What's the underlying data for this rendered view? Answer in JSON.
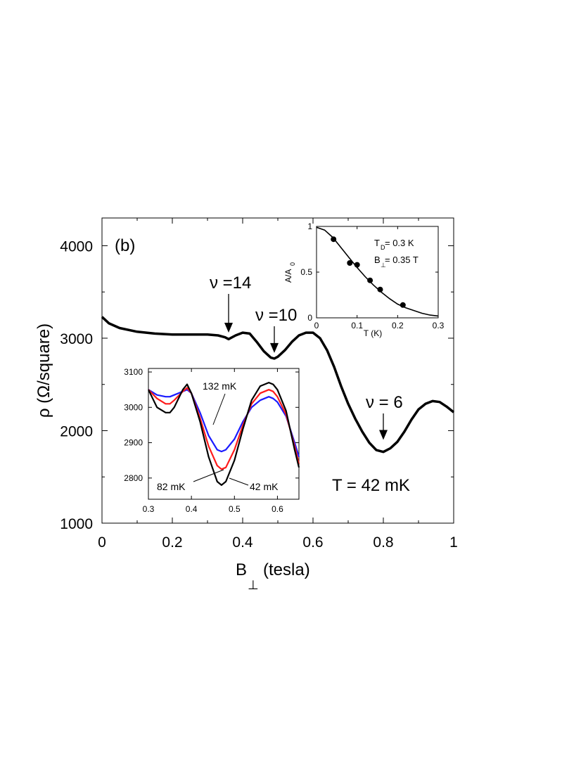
{
  "colors": {
    "black": "#000000",
    "red": "#ff1a1a",
    "blue": "#1a1aff"
  },
  "chart_data": [
    {
      "type": "line",
      "panel_label": "(b)",
      "xlabel_main": "B",
      "xlabel_sub": "⊥",
      "xlabel_unit": "(tesla)",
      "ylabel": "ρ (Ω/square)",
      "xlim": [
        0,
        1
      ],
      "ylim": [
        1000,
        4300
      ],
      "xticks": [
        "0",
        "0.2",
        "0.4",
        "0.6",
        "0.8",
        "1"
      ],
      "yticks": [
        "1000",
        "2000",
        "3000",
        "4000"
      ],
      "temperature_label": "T = 42 mK",
      "annotations": [
        "ν =14",
        "ν =10",
        "ν = 6"
      ],
      "annotation_x": [
        0.36,
        0.49,
        0.8
      ],
      "annotation_tip_y": [
        3000,
        2780,
        1840
      ],
      "series": [
        {
          "color": "black",
          "x": [
            0.0,
            0.02,
            0.05,
            0.1,
            0.15,
            0.2,
            0.25,
            0.3,
            0.33,
            0.35,
            0.36,
            0.38,
            0.4,
            0.42,
            0.44,
            0.46,
            0.48,
            0.49,
            0.5,
            0.52,
            0.54,
            0.56,
            0.58,
            0.6,
            0.62,
            0.64,
            0.66,
            0.68,
            0.7,
            0.72,
            0.74,
            0.76,
            0.78,
            0.8,
            0.82,
            0.84,
            0.86,
            0.88,
            0.9,
            0.92,
            0.94,
            0.96,
            0.98,
            1.0
          ],
          "y": [
            3230,
            3160,
            3110,
            3070,
            3050,
            3040,
            3040,
            3040,
            3030,
            3010,
            2990,
            3030,
            3060,
            3050,
            2960,
            2860,
            2790,
            2780,
            2800,
            2870,
            2960,
            3030,
            3060,
            3060,
            3000,
            2870,
            2690,
            2480,
            2290,
            2130,
            1990,
            1870,
            1790,
            1770,
            1810,
            1880,
            1990,
            2120,
            2230,
            2290,
            2320,
            2310,
            2260,
            2200
          ]
        }
      ]
    },
    {
      "type": "line",
      "xlim": [
        0.3,
        0.65
      ],
      "ylim": [
        2740,
        3110
      ],
      "xticks": [
        "0.3",
        "0.4",
        "0.5",
        "0.6"
      ],
      "yticks": [
        "2800",
        "2900",
        "3000",
        "3100"
      ],
      "annotations": [
        "132 mK",
        "82 mK",
        "42 mK"
      ],
      "series": [
        {
          "name": "42 mK",
          "color": "black",
          "x": [
            0.3,
            0.32,
            0.34,
            0.35,
            0.36,
            0.38,
            0.39,
            0.4,
            0.42,
            0.44,
            0.46,
            0.47,
            0.48,
            0.5,
            0.52,
            0.54,
            0.56,
            0.58,
            0.59,
            0.6,
            0.62,
            0.64,
            0.65
          ],
          "y": [
            3050,
            3000,
            2985,
            2985,
            3000,
            3050,
            3065,
            3040,
            2960,
            2860,
            2790,
            2780,
            2790,
            2850,
            2940,
            3020,
            3060,
            3070,
            3065,
            3050,
            2990,
            2880,
            2830
          ]
        },
        {
          "name": "82 mK",
          "color": "red",
          "x": [
            0.3,
            0.32,
            0.34,
            0.35,
            0.36,
            0.38,
            0.39,
            0.4,
            0.42,
            0.44,
            0.46,
            0.47,
            0.48,
            0.5,
            0.52,
            0.54,
            0.56,
            0.58,
            0.59,
            0.6,
            0.62,
            0.64,
            0.65
          ],
          "y": [
            3050,
            3025,
            3010,
            3010,
            3020,
            3045,
            3055,
            3040,
            2970,
            2890,
            2835,
            2825,
            2830,
            2880,
            2950,
            3010,
            3040,
            3050,
            3045,
            3030,
            2980,
            2890,
            2840
          ]
        },
        {
          "name": "132 mK",
          "color": "blue",
          "x": [
            0.3,
            0.32,
            0.34,
            0.35,
            0.36,
            0.38,
            0.39,
            0.4,
            0.42,
            0.44,
            0.46,
            0.47,
            0.48,
            0.5,
            0.52,
            0.54,
            0.56,
            0.58,
            0.59,
            0.6,
            0.62,
            0.64,
            0.65
          ],
          "y": [
            3050,
            3035,
            3030,
            3030,
            3035,
            3045,
            3050,
            3040,
            2985,
            2920,
            2880,
            2875,
            2880,
            2910,
            2960,
            3000,
            3020,
            3030,
            3025,
            3015,
            2975,
            2900,
            2860
          ]
        }
      ]
    },
    {
      "type": "scatter",
      "xlabel": "T (K)",
      "ylabel_main": "A/A",
      "ylabel_sub": "0",
      "xlim": [
        0,
        0.3
      ],
      "ylim": [
        0,
        1
      ],
      "xticks": [
        "0",
        "0.1",
        "0.2",
        "0.3"
      ],
      "yticks": [
        "0",
        "0.5",
        "1"
      ],
      "annotation_td_main": "T",
      "annotation_td_sub": "D",
      "annotation_td_value": " = 0.3 K",
      "annotation_b_main": "B",
      "annotation_b_sub": "⊥",
      "annotation_b_value": " = 0.35 T",
      "points": {
        "x": [
          0.042,
          0.082,
          0.1,
          0.132,
          0.157,
          0.213
        ],
        "y": [
          0.86,
          0.6,
          0.58,
          0.41,
          0.31,
          0.14
        ]
      },
      "fit": {
        "x": [
          0.0,
          0.02,
          0.04,
          0.06,
          0.08,
          0.1,
          0.12,
          0.14,
          0.16,
          0.18,
          0.2,
          0.22,
          0.24,
          0.26,
          0.28,
          0.3
        ],
        "y": [
          0.99,
          0.96,
          0.88,
          0.77,
          0.66,
          0.55,
          0.45,
          0.36,
          0.28,
          0.21,
          0.15,
          0.11,
          0.08,
          0.05,
          0.03,
          0.02
        ]
      }
    }
  ]
}
